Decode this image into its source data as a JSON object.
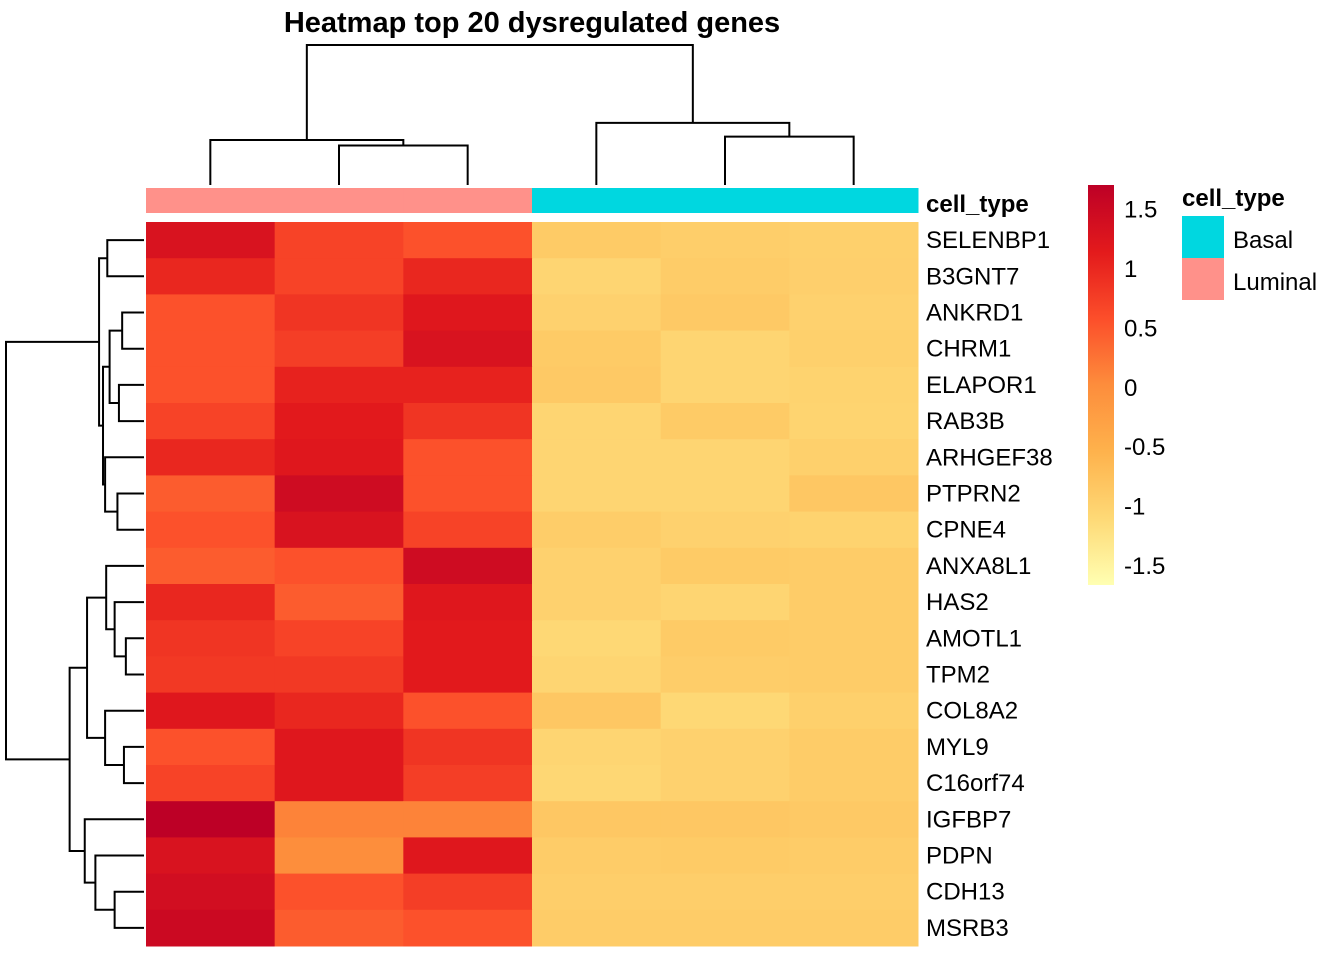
{
  "chart_data": {
    "type": "heatmap",
    "title": "Heatmap top 20 dysregulated genes",
    "rows": [
      "SELENBP1",
      "B3GNT7",
      "ANKRD1",
      "CHRM1",
      "ELAPOR1",
      "RAB3B",
      "ARHGEF38",
      "PTPRN2",
      "CPNE4",
      "ANXA8L1",
      "HAS2",
      "AMOTL1",
      "TPM2",
      "COL8A2",
      "MYL9",
      "C16orf74",
      "IGFBP7",
      "PDPN",
      "CDH13",
      "MSRB3"
    ],
    "columns": [
      {
        "cell_type": "Luminal"
      },
      {
        "cell_type": "Luminal"
      },
      {
        "cell_type": "Luminal"
      },
      {
        "cell_type": "Basal"
      },
      {
        "cell_type": "Basal"
      },
      {
        "cell_type": "Basal"
      }
    ],
    "values": [
      [
        1.3,
        0.7,
        0.55,
        -0.9,
        -0.95,
        -0.98
      ],
      [
        1.0,
        0.7,
        1.0,
        -1.05,
        -0.92,
        -0.97
      ],
      [
        0.55,
        0.85,
        1.2,
        -1.0,
        -0.88,
        -1.0
      ],
      [
        0.55,
        0.75,
        1.3,
        -0.9,
        -1.05,
        -0.98
      ],
      [
        0.55,
        1.05,
        1.05,
        -0.88,
        -1.05,
        -1.02
      ],
      [
        0.7,
        1.15,
        0.85,
        -1.05,
        -0.9,
        -1.03
      ],
      [
        1.0,
        1.2,
        0.55,
        -1.05,
        -1.05,
        -0.98
      ],
      [
        0.45,
        1.45,
        0.55,
        -1.05,
        -1.05,
        -0.85
      ],
      [
        0.55,
        1.3,
        0.7,
        -0.93,
        -1.0,
        -1.02
      ],
      [
        0.45,
        0.55,
        1.45,
        -1.0,
        -0.9,
        -0.92
      ],
      [
        1.0,
        0.45,
        1.2,
        -1.0,
        -1.05,
        -0.92
      ],
      [
        0.85,
        0.7,
        1.15,
        -1.1,
        -0.9,
        -0.92
      ],
      [
        0.8,
        0.8,
        1.15,
        -1.05,
        -0.93,
        -0.92
      ],
      [
        1.2,
        1.0,
        0.55,
        -0.85,
        -1.1,
        -0.98
      ],
      [
        0.55,
        1.2,
        0.85,
        -1.05,
        -1.0,
        -0.92
      ],
      [
        0.7,
        1.2,
        0.75,
        -1.08,
        -1.0,
        -0.92
      ],
      [
        1.7,
        0.1,
        0.1,
        -0.85,
        -0.85,
        -0.88
      ],
      [
        1.3,
        0.0,
        1.2,
        -0.92,
        -0.9,
        -0.92
      ],
      [
        1.4,
        0.55,
        0.75,
        -0.95,
        -0.95,
        -0.95
      ],
      [
        1.5,
        0.45,
        0.55,
        -0.92,
        -0.92,
        -0.92
      ]
    ],
    "column_order_note": "values columns listed as [Luminal-1, Luminal-2, Luminal-3, Basal-1, Basal-2, Basal-3] as displayed left-to-right",
    "color_scale": {
      "range": [
        -1.67,
        1.7
      ],
      "colors": [
        "#FFFFB2",
        "#FED976",
        "#FEB24C",
        "#FD8D3C",
        "#FC4E2A",
        "#E31A1C",
        "#BD0026"
      ],
      "ticks": [
        1.5,
        1,
        0.5,
        0,
        -0.5,
        -1,
        -1.5
      ],
      "tick_labels": [
        "1.5",
        "1",
        "0.5",
        "0",
        "-0.5",
        "-1",
        "-1.5"
      ]
    },
    "annotation": {
      "label": "cell_type",
      "legend_title": "cell_type",
      "levels": [
        {
          "name": "Basal",
          "color": "#00D7E0"
        },
        {
          "name": "Luminal",
          "color": "#FF918A"
        }
      ]
    },
    "row_dendrogram": {
      "merges": [
        {
          "a": 0,
          "b": 1,
          "h": 0.18
        },
        {
          "a": 2,
          "b": 3,
          "h": 0.07
        },
        {
          "a": 4,
          "b": 5,
          "h": 0.09
        },
        {
          "a": "m1",
          "b": "m2",
          "h": 0.16
        },
        {
          "a": 7,
          "b": 8,
          "h": 0.1
        },
        {
          "a": 6,
          "b": "m4",
          "h": 0.2
        },
        {
          "a": "m3",
          "b": "m5",
          "h": 0.22
        },
        {
          "a": "m0",
          "b": "m6",
          "h": 0.26
        },
        {
          "a": 11,
          "b": 12,
          "h": 0.05
        },
        {
          "a": 10,
          "b": "m8",
          "h": 0.12
        },
        {
          "a": 9,
          "b": "m9",
          "h": 0.19
        },
        {
          "a": 15,
          "b": 14,
          "h": 0.06
        },
        {
          "a": 13,
          "b": "m11",
          "h": 0.2
        },
        {
          "a": "m10",
          "b": "m12",
          "h": 0.4
        },
        {
          "a": 18,
          "b": 19,
          "h": 0.12
        },
        {
          "a": 17,
          "b": "m14",
          "h": 0.3
        },
        {
          "a": 16,
          "b": "m15",
          "h": 0.43
        },
        {
          "a": "m13",
          "b": "m16",
          "h": 0.65
        },
        {
          "a": "m7",
          "b": "m17",
          "h": 2.0
        }
      ]
    },
    "column_dendrogram": {
      "merges": [
        {
          "a": 1,
          "b": 2,
          "h": 0.13
        },
        {
          "a": 0,
          "b": "m0",
          "h": 0.16
        },
        {
          "a": 4,
          "b": 5,
          "h": 0.18
        },
        {
          "a": 3,
          "b": "m2",
          "h": 0.27
        },
        {
          "a": "m1",
          "b": "m3",
          "h": 1.0
        }
      ]
    }
  }
}
